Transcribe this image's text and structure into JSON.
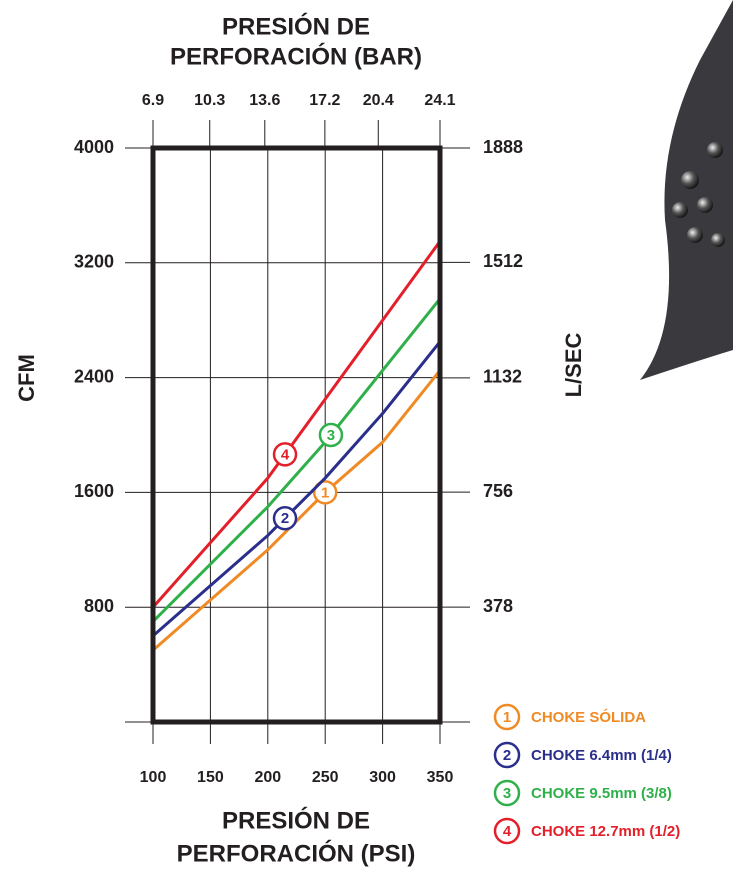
{
  "chart_data": {
    "type": "line",
    "x_label_top": [
      "PRESIÓN DE",
      "PERFORACIÓN (BAR)"
    ],
    "x_label": [
      "PRESIÓN DE",
      "PERFORACIÓN (PSI)"
    ],
    "y_label": "CFM",
    "y2_label": "L/SEC",
    "x": [
      100,
      150,
      200,
      250,
      300,
      350
    ],
    "xlim": [
      100,
      350
    ],
    "xticks": [
      100,
      150,
      200,
      250,
      300,
      350
    ],
    "x2lim": [
      6.9,
      24.1
    ],
    "x2ticks": [
      6.9,
      10.3,
      13.6,
      17.2,
      20.4,
      24.1
    ],
    "ylim": [
      0,
      4000
    ],
    "yticks": [
      800,
      1600,
      2400,
      3200,
      4000
    ],
    "y2lim": [
      0,
      1888
    ],
    "y2ticks": [
      378,
      756,
      1132,
      1512,
      1888
    ],
    "grid": true,
    "series": [
      {
        "name": "CHOKE SÓLIDA",
        "marker": "1",
        "color": "#f08a24",
        "values": [
          500,
          850,
          1200,
          1600,
          1950,
          2450
        ]
      },
      {
        "name": "CHOKE 6.4mm (1/4)",
        "marker": "2",
        "color": "#2b2f8c",
        "values": [
          600,
          950,
          1300,
          1700,
          2150,
          2650
        ]
      },
      {
        "name": "CHOKE 9.5mm (3/8)",
        "marker": "3",
        "color": "#2fb04a",
        "values": [
          700,
          1100,
          1500,
          1950,
          2450,
          2950
        ]
      },
      {
        "name": "CHOKE 12.7mm (1/2)",
        "marker": "4",
        "color": "#e3202a",
        "values": [
          800,
          1250,
          1700,
          2250,
          2800,
          3350
        ]
      }
    ]
  }
}
